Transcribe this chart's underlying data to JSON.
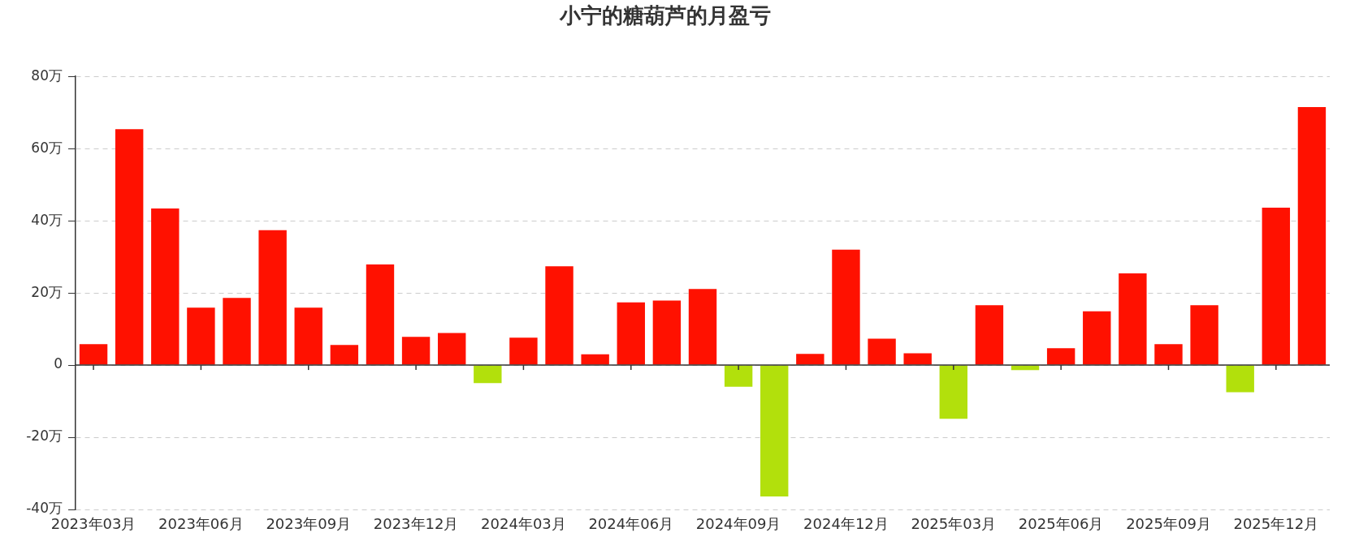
{
  "chart_data": {
    "type": "bar",
    "title": "小宁的糖葫芦的月盈亏",
    "categories": [
      "2023年03月",
      null,
      null,
      "2023年06月",
      null,
      null,
      "2023年09月",
      null,
      null,
      "2023年12月",
      null,
      null,
      "2024年03月",
      null,
      null,
      "2024年06月",
      null,
      null,
      "2024年09月",
      null,
      null,
      "2024年12月",
      null,
      null,
      "2025年03月",
      null,
      null,
      "2025年06月",
      null,
      null,
      "2025年09月",
      null,
      null,
      "2025年12月",
      null
    ],
    "values": [
      5.8,
      65.4,
      43.4,
      15.9,
      18.6,
      37.4,
      15.9,
      5.6,
      27.9,
      7.8,
      8.9,
      -5.0,
      7.6,
      27.4,
      3.0,
      17.4,
      17.9,
      21.1,
      -6.0,
      -36.4,
      3.1,
      32.0,
      7.3,
      3.3,
      -14.9,
      16.6,
      -1.4,
      4.7,
      14.9,
      25.4,
      5.8,
      16.6,
      -7.5,
      43.6,
      71.5
    ],
    "colors": [
      "#ff1100",
      "#ff1100",
      "#ff1100",
      "#ff1100",
      "#ff1100",
      "#ff1100",
      "#ff1100",
      "#ff1100",
      "#ff1100",
      "#ff1100",
      "#ff1100",
      "#b2e00c",
      "#ff1100",
      "#ff1100",
      "#ff1100",
      "#ff1100",
      "#ff1100",
      "#ff1100",
      "#b2e00c",
      "#b2e00c",
      "#ff1100",
      "#ff1100",
      "#ff1100",
      "#ff1100",
      "#b2e00c",
      "#ff1100",
      "#b2e00c",
      "#ff1100",
      "#ff1100",
      "#ff1100",
      "#ff1100",
      "#ff1100",
      "#b2e00c",
      "#ff1100",
      "#ff1100"
    ],
    "ylim": [
      -40,
      80
    ],
    "yticks": [
      {
        "value": -40,
        "label": "-40万"
      },
      {
        "value": -20,
        "label": "-20万"
      },
      0,
      {
        "value": 20,
        "label": "20万"
      },
      {
        "value": 40,
        "label": "40万"
      },
      {
        "value": 60,
        "label": "60万"
      },
      {
        "value": 80,
        "label": "80万"
      }
    ],
    "grid": "y"
  }
}
